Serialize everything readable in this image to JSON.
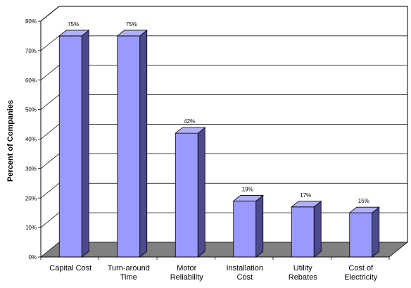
{
  "chart_data": {
    "type": "bar",
    "title": "",
    "xlabel": "",
    "ylabel": "Percent of Companies",
    "ylim": [
      0,
      80
    ],
    "yticks": [
      "0%",
      "10%",
      "20%",
      "30%",
      "40%",
      "50%",
      "60%",
      "70%",
      "80%"
    ],
    "grid": true,
    "legend": "none",
    "categories": [
      [
        "Capital Cost"
      ],
      [
        "Turn-around",
        "Time"
      ],
      [
        "Motor",
        "Reliability"
      ],
      [
        "Installation",
        "Cost"
      ],
      [
        "Utility",
        "Rebates"
      ],
      [
        "Cost of",
        "Electricity"
      ]
    ],
    "values": [
      75,
      75,
      42,
      19,
      17,
      15
    ],
    "data_labels": [
      "75%",
      "75%",
      "42%",
      "19%",
      "17%",
      "15%"
    ],
    "colors": {
      "bar_front": "#9999FF",
      "bar_side": "#4A4A8C",
      "bar_top": "#B0B0FF",
      "floor": "#808080",
      "grid": "#000000"
    }
  }
}
